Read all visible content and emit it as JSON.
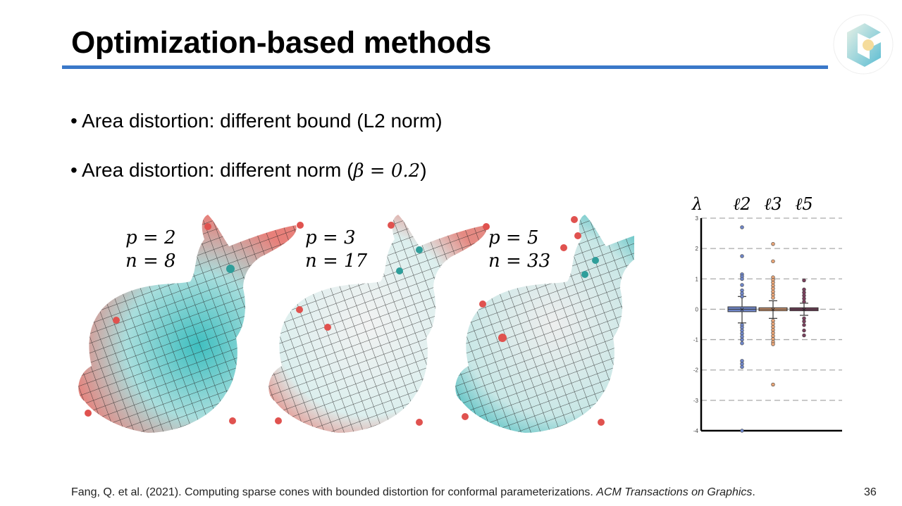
{
  "slide": {
    "title": "Optimization-based methods",
    "bullets": [
      {
        "text": "• Area distortion: different bound (L2 norm)"
      },
      {
        "text": "• Area distortion: different norm (",
        "math": "β = 0.2",
        "suffix": ")"
      }
    ],
    "bunny_labels": [
      {
        "p": "p = 2",
        "n": "n = 8"
      },
      {
        "p": "p = 3",
        "n": "n = 17"
      },
      {
        "p": "p = 5",
        "n": "n = 33"
      }
    ],
    "footer": {
      "citation": "Fang, Q. et al. (2021). Computing sparse cones with bounded distortion for conformal parameterizations. ",
      "journal": "ACM Transactions on Graphics",
      "end": "."
    },
    "page_number": "36",
    "colors": {
      "accent": "#3a78c9",
      "teal": "#3fbfc0",
      "red": "#e0524f"
    }
  },
  "chart_data": {
    "type": "box",
    "ylabel": "λ",
    "ylim": [
      -4,
      3
    ],
    "yticks": [
      "3",
      "2",
      "1",
      "0",
      "-1",
      "-2",
      "-3",
      "-4"
    ],
    "grid": "dashed horizontal",
    "series": [
      {
        "name": "ℓ2",
        "color": "#6f86c9",
        "q1": -0.08,
        "median": 0,
        "q3": 0.08,
        "whisker_low": -0.45,
        "whisker_high": 0.42,
        "outliers": [
          2.7,
          1.75,
          1.15,
          1.08,
          1.0,
          0.8,
          0.62,
          0.52,
          0.42,
          -0.52,
          -0.6,
          -0.7,
          -0.8,
          -0.9,
          -1.0,
          -1.12,
          -1.7,
          -1.8,
          -1.9,
          -4.0
        ]
      },
      {
        "name": "ℓ3",
        "color": "#e9a577",
        "q1": -0.05,
        "median": 0,
        "q3": 0.05,
        "whisker_low": -0.3,
        "whisker_high": 0.28,
        "outliers": [
          2.15,
          1.58,
          1.05,
          0.97,
          0.88,
          0.78,
          0.68,
          0.58,
          0.48,
          0.38,
          -0.38,
          -0.48,
          -0.58,
          -0.68,
          -0.78,
          -0.88,
          -0.98,
          -1.08,
          -1.15,
          -2.48
        ]
      },
      {
        "name": "ℓ5",
        "color": "#7a3f5c",
        "q1": -0.05,
        "median": 0,
        "q3": 0.05,
        "whisker_low": -0.2,
        "whisker_high": 0.2,
        "outliers": [
          0.95,
          0.65,
          0.55,
          0.45,
          0.35,
          0.25,
          -0.3,
          -0.4,
          -0.52,
          -0.7,
          -0.86
        ]
      }
    ]
  }
}
